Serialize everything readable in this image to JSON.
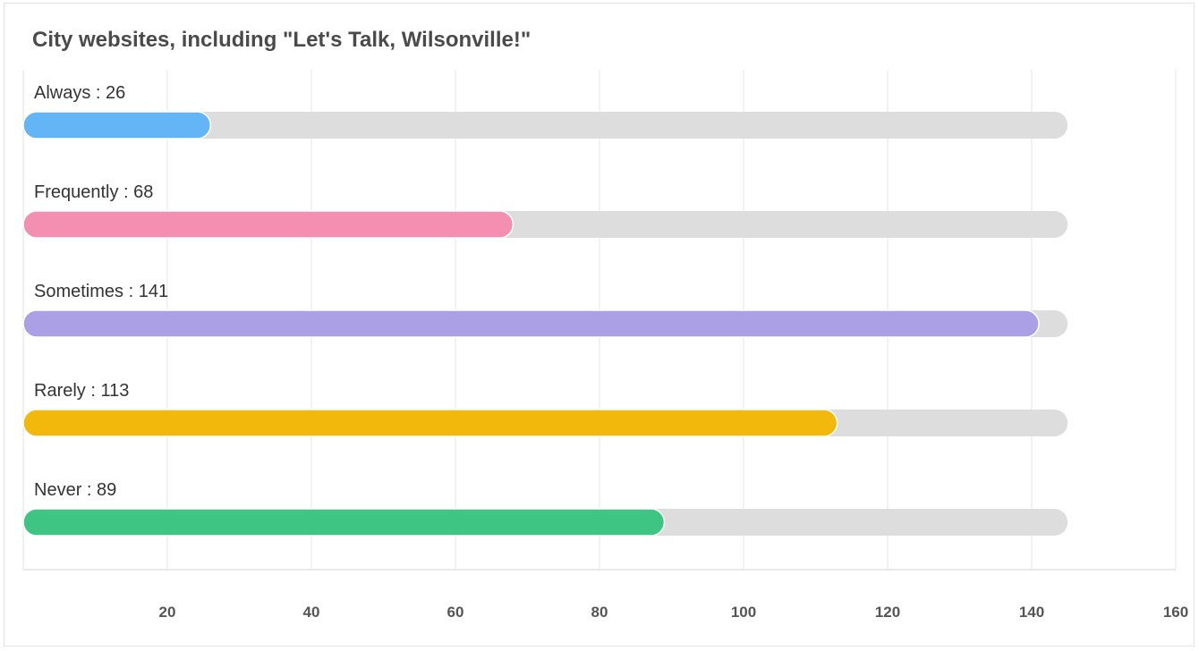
{
  "chart_data": {
    "type": "bar",
    "orientation": "horizontal",
    "title": "City websites, including \"Let's Talk, Wilsonville!\"",
    "categories": [
      "Always",
      "Frequently",
      "Sometimes",
      "Rarely",
      "Never"
    ],
    "values": [
      26,
      68,
      141,
      113,
      89
    ],
    "colors": [
      "#64b5f6",
      "#f48fb1",
      "#ab9fe6",
      "#f2b90c",
      "#3ec483"
    ],
    "track_color": "#dddddd",
    "track_max": 145,
    "label_separator": " : ",
    "xlim": [
      0,
      160
    ],
    "xticks": [
      20,
      40,
      60,
      80,
      100,
      120,
      140,
      160
    ],
    "grid": true,
    "legend": "none"
  }
}
